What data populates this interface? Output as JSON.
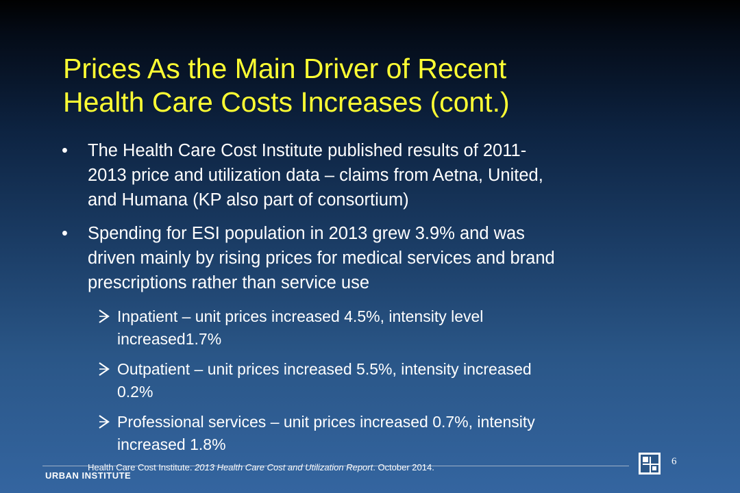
{
  "slide": {
    "title_lines": [
      "Prices As the Main Driver of Recent",
      "Health Care Costs Increases (cont.)"
    ],
    "bullet_char": "•",
    "bullets": [
      {
        "lines": [
          "The Health Care Cost Institute published results of 2011-",
          "2013 price and utilization data – claims from Aetna, United,",
          "and Humana (KP also part of consortium)"
        ]
      },
      {
        "lines": [
          "Spending for ESI population in 2013 grew 3.9% and was",
          "driven mainly by rising prices for medical services and brand",
          "prescriptions rather than service use"
        ]
      }
    ],
    "sub_bullets": [
      {
        "lines": [
          "Inpatient – unit prices increased 4.5%, intensity level",
          "increased1.7%"
        ]
      },
      {
        "lines": [
          "Outpatient – unit prices increased 5.5%, intensity increased",
          "0.2%"
        ]
      },
      {
        "lines": [
          "Professional services – unit prices increased 0.7%, intensity",
          "increased 1.8%"
        ]
      }
    ]
  },
  "footer": {
    "organization": "URBAN INSTITUTE",
    "source_prefix": "Health Care Cost Institute. ",
    "source_title": "2013 Health Care Cost and Utilization Report",
    "source_suffix": ". October 2014.",
    "page_number": "6",
    "logo_icon": "urban-institute-logo-icon"
  },
  "colors": {
    "title": "#ffff33",
    "text": "#ffffff",
    "background_top": "#010101",
    "background_bottom": "#3465a0"
  }
}
